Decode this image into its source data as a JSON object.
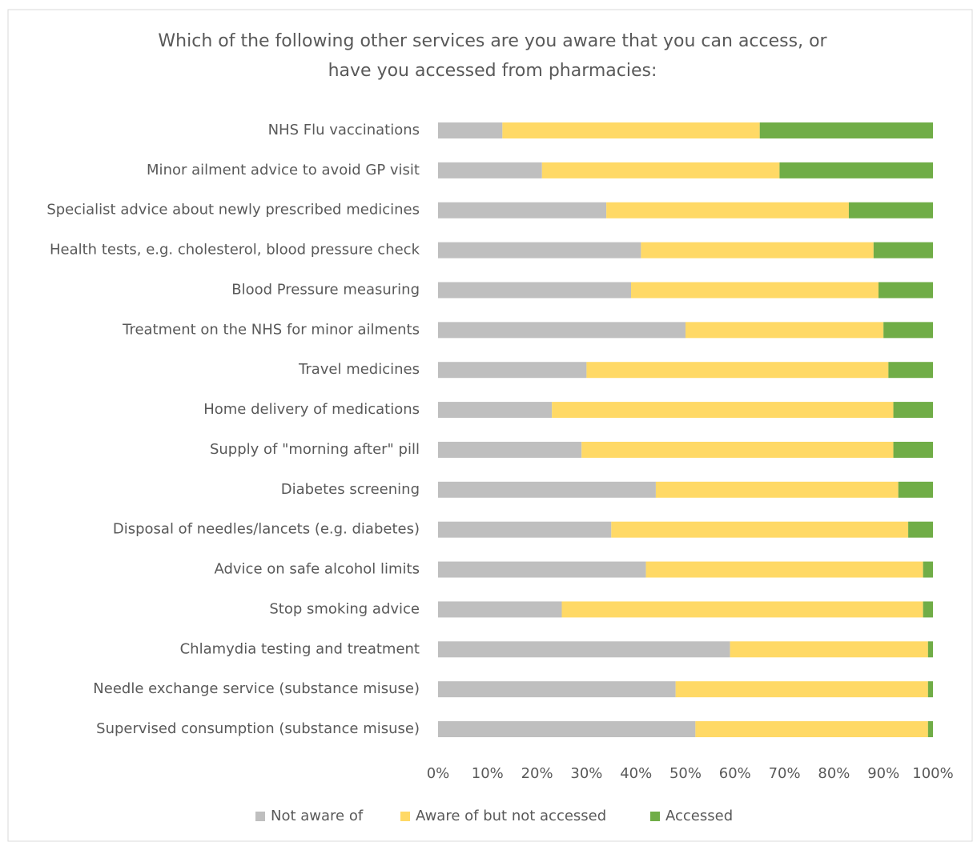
{
  "chart_data": {
    "type": "stacked-barh",
    "title": [
      "Which of the following other services are you aware that you can access, or",
      "have you accessed from pharmacies:"
    ],
    "categories": [
      "NHS Flu vaccinations",
      "Minor ailment advice to avoid GP visit",
      "Specialist advice about newly prescribed medicines",
      "Health tests, e.g. cholesterol, blood pressure check",
      "Blood Pressure measuring",
      "Treatment on the NHS for minor ailments",
      "Travel medicines",
      "Home delivery of medications",
      "Supply of \"morning after\" pill",
      "Diabetes screening",
      "Disposal of needles/lancets (e.g. diabetes)",
      "Advice on safe alcohol limits",
      "Stop smoking advice",
      "Chlamydia testing and treatment",
      "Needle exchange service (substance misuse)",
      "Supervised consumption (substance misuse)"
    ],
    "series": [
      {
        "name": "Not aware of",
        "color": "#bfbfbf",
        "values": [
          13,
          21,
          34,
          41,
          39,
          50,
          30,
          23,
          29,
          44,
          35,
          42,
          25,
          59,
          48,
          52
        ]
      },
      {
        "name": "Aware of but not accessed",
        "color": "#ffd966",
        "values": [
          52,
          48,
          49,
          47,
          50,
          40,
          61,
          69,
          63,
          49,
          60,
          56,
          73,
          40,
          51,
          47
        ]
      },
      {
        "name": "Accessed",
        "color": "#70ad47",
        "values": [
          35,
          31,
          17,
          12,
          11,
          10,
          9,
          8,
          8,
          7,
          5,
          2,
          2,
          1,
          1,
          1
        ]
      }
    ],
    "xlim": [
      0,
      100
    ],
    "xticks": [
      {
        "value": 0,
        "label": "0%"
      },
      {
        "value": 10,
        "label": "10%"
      },
      {
        "value": 20,
        "label": "20%"
      },
      {
        "value": 30,
        "label": "30%"
      },
      {
        "value": 40,
        "label": "40%"
      },
      {
        "value": 50,
        "label": "50%"
      },
      {
        "value": 60,
        "label": "60%"
      },
      {
        "value": 70,
        "label": "70%"
      },
      {
        "value": 80,
        "label": "80%"
      },
      {
        "value": 90,
        "label": "90%"
      },
      {
        "value": 100,
        "label": "100%"
      }
    ],
    "grid": false,
    "legend": "bottom"
  }
}
